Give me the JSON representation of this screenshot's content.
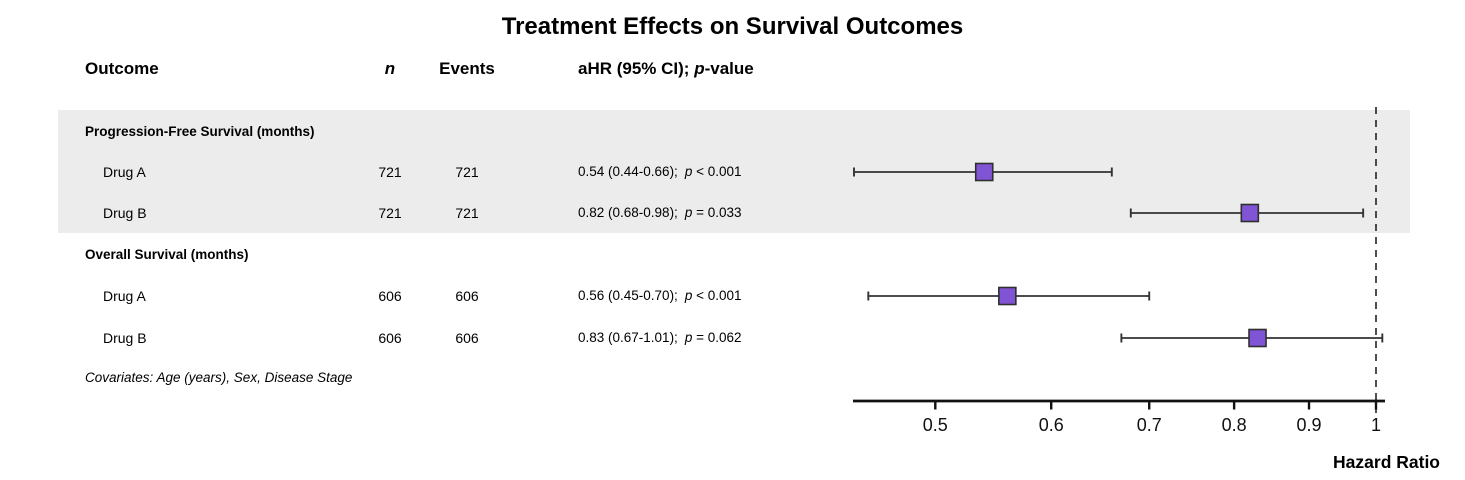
{
  "title": "Treatment Effects on Survival Outcomes",
  "columns": {
    "outcome": "Outcome",
    "n": "n",
    "events": "Events",
    "ahr_prefix": "aHR (95% CI); ",
    "p_italic": "p",
    "ahr_suffix": "-value"
  },
  "footnote": "Covariates: Age (years), Sex, Disease Stage",
  "colors": {
    "band": "#ECECEC",
    "marker_fill": "#8055D5",
    "marker_border": "#2F2F2F",
    "ci_line": "#333333",
    "axis": "#111111",
    "ref_line": "#222222",
    "tick_text": "#111111"
  },
  "chart_data": {
    "type": "forest",
    "x_scale": "log",
    "axis_title": "Hazard Ratio",
    "x_ticks": [
      "0.5",
      "0.6",
      "0.7",
      "0.8",
      "0.9",
      "1"
    ],
    "x_tick_values": [
      0.5,
      0.6,
      0.7,
      0.8,
      0.9,
      1
    ],
    "reference_line": 1.0,
    "x_range_drawn": [
      0.44,
      1.015
    ],
    "groups": [
      {
        "label": "Progression-Free Survival (months)",
        "shaded": true,
        "rows": [
          {
            "label": "Drug A",
            "n": "721",
            "events": "721",
            "estimate": 0.54,
            "lower": 0.44,
            "upper": 0.66,
            "ci_text": "0.54 (0.44-0.66);",
            "p_text": " < 0.001"
          },
          {
            "label": "Drug B",
            "n": "721",
            "events": "721",
            "estimate": 0.82,
            "lower": 0.68,
            "upper": 0.98,
            "ci_text": "0.82 (0.68-0.98);",
            "p_text": " = 0.033"
          }
        ]
      },
      {
        "label": "Overall Survival (months)",
        "shaded": false,
        "rows": [
          {
            "label": "Drug A",
            "n": "606",
            "events": "606",
            "estimate": 0.56,
            "lower": 0.45,
            "upper": 0.7,
            "ci_text": "0.56 (0.45-0.70);",
            "p_text": " < 0.001"
          },
          {
            "label": "Drug B",
            "n": "606",
            "events": "606",
            "estimate": 0.83,
            "lower": 0.67,
            "upper": 1.01,
            "ci_text": "0.83 (0.67-1.01);",
            "p_text": " = 0.062"
          }
        ]
      }
    ]
  }
}
